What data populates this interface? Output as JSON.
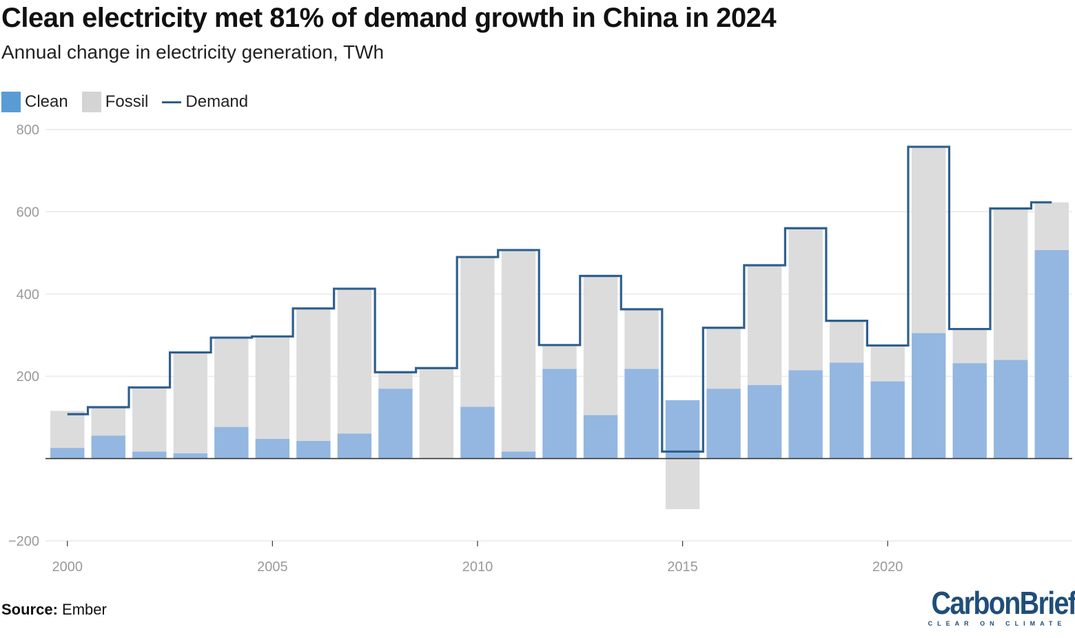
{
  "header": {
    "title": "Clean electricity met 81% of demand growth in China in 2024",
    "subtitle": "Annual change in electricity generation, TWh"
  },
  "legend": {
    "clean": "Clean",
    "fossil": "Fossil",
    "demand": "Demand"
  },
  "footer": {
    "source_label": "Source:",
    "source_value": "Ember",
    "logo_text": "CarbonBrief",
    "logo_tagline": "CLEAR ON CLIMATE"
  },
  "colors": {
    "clean": "#93b7e0",
    "fossil": "#dcdcdc",
    "demand": "#2e5f8e",
    "grid": "#e3e3e3",
    "axis_text": "#9a9a9a",
    "zero_line": "#333333"
  },
  "chart_data": {
    "type": "bar",
    "stacked": true,
    "title": "Clean electricity met 81% of demand growth in China in 2024",
    "subtitle": "Annual change in electricity generation, TWh",
    "xlabel": "",
    "ylabel": "TWh",
    "ylim": [
      -200,
      800
    ],
    "yticks": [
      800,
      600,
      400,
      200,
      -200
    ],
    "ytick_labels": [
      "800",
      "600",
      "400",
      "200",
      "−200"
    ],
    "xticks": [
      2000,
      2005,
      2010,
      2015,
      2020
    ],
    "xtick_labels": [
      "2000",
      "2005",
      "2010",
      "2015",
      "2020"
    ],
    "grid": true,
    "legend_position": "top-left",
    "categories": [
      2000,
      2001,
      2002,
      2003,
      2004,
      2005,
      2006,
      2007,
      2008,
      2009,
      2010,
      2011,
      2012,
      2013,
      2014,
      2015,
      2016,
      2017,
      2018,
      2019,
      2020,
      2021,
      2022,
      2023,
      2024
    ],
    "series": [
      {
        "name": "Clean",
        "values": [
          26,
          56,
          17,
          13,
          77,
          48,
          43,
          61,
          170,
          0,
          126,
          17,
          218,
          106,
          218,
          142,
          170,
          179,
          215,
          233,
          188,
          305,
          232,
          240,
          507
        ]
      },
      {
        "name": "Fossil",
        "values": [
          90,
          67,
          157,
          245,
          217,
          248,
          322,
          351,
          41,
          221,
          365,
          490,
          58,
          338,
          145,
          -123,
          150,
          293,
          345,
          103,
          88,
          455,
          84,
          368,
          116
        ]
      },
      {
        "name": "Demand",
        "type": "step",
        "values": [
          108,
          125,
          173,
          258,
          294,
          297,
          365,
          413,
          210,
          220,
          490,
          507,
          276,
          444,
          363,
          17,
          318,
          470,
          560,
          335,
          275,
          758,
          315,
          608,
          623
        ]
      }
    ]
  }
}
